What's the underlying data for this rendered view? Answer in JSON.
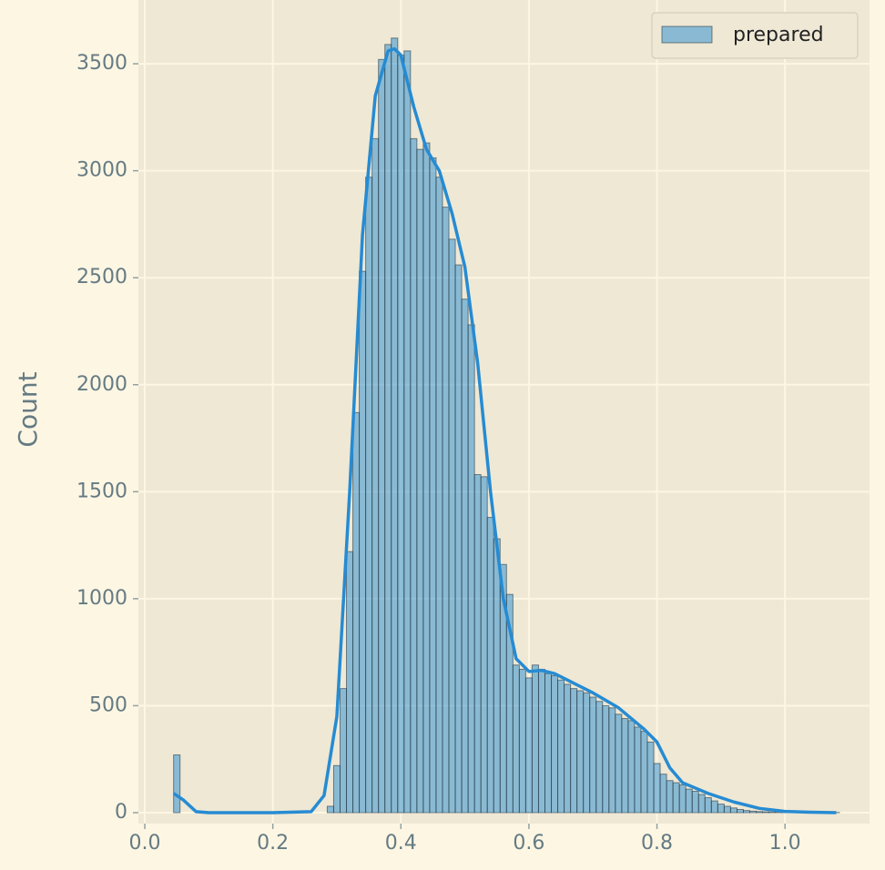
{
  "chart_data": {
    "type": "histogram",
    "ylabel": "Count",
    "name": "prepared",
    "color": "#268bd2",
    "edgecolor": "#2a3a44",
    "grid": true,
    "legend_loc": "upper right",
    "xlim": [
      -0.01,
      1.132
    ],
    "ylim": [
      -51,
      3798
    ],
    "xticks": [
      {
        "value": 0,
        "label": "0.0"
      },
      0.2,
      0.4,
      0.6,
      0.8,
      {
        "value": 1,
        "label": "1.0"
      }
    ],
    "yticks": [
      0,
      500,
      1000,
      1500,
      2000,
      2500,
      3000,
      3500
    ],
    "bins": [
      0.045,
      0.055,
      0.065,
      0.075,
      0.085,
      0.095,
      0.105,
      0.115,
      0.125,
      0.135,
      0.145,
      0.155,
      0.165,
      0.175,
      0.185,
      0.195,
      0.205,
      0.215,
      0.225,
      0.235,
      0.245,
      0.255,
      0.265,
      0.275,
      0.285,
      0.295,
      0.305,
      0.315,
      0.325,
      0.335,
      0.345,
      0.355,
      0.365,
      0.375,
      0.385,
      0.395,
      0.405,
      0.415,
      0.425,
      0.435,
      0.445,
      0.455,
      0.465,
      0.475,
      0.485,
      0.495,
      0.505,
      0.515,
      0.525,
      0.535,
      0.545,
      0.555,
      0.565,
      0.575,
      0.585,
      0.595,
      0.605,
      0.615,
      0.625,
      0.635,
      0.645,
      0.655,
      0.665,
      0.675,
      0.685,
      0.695,
      0.705,
      0.715,
      0.725,
      0.735,
      0.745,
      0.755,
      0.765,
      0.775,
      0.785,
      0.795,
      0.805,
      0.815,
      0.825,
      0.835,
      0.845,
      0.855,
      0.865,
      0.875,
      0.885,
      0.895,
      0.905,
      0.915,
      0.925,
      0.935,
      0.945,
      0.955,
      0.965,
      0.975,
      0.985,
      0.995,
      1.005,
      1.015,
      1.025,
      1.035,
      1.045,
      1.055,
      1.065,
      1.075,
      1.085
    ],
    "counts": [
      270,
      0,
      0,
      0,
      0,
      0,
      0,
      0,
      0,
      0,
      0,
      0,
      0,
      0,
      0,
      0,
      0,
      0,
      0,
      0,
      0,
      0,
      0,
      0,
      30,
      220,
      580,
      1220,
      1870,
      2530,
      2970,
      3150,
      3520,
      3590,
      3620,
      3540,
      3560,
      3150,
      3100,
      3130,
      3060,
      2970,
      2830,
      2680,
      2560,
      2400,
      2280,
      1580,
      1570,
      1380,
      1280,
      1160,
      1020,
      690,
      670,
      630,
      690,
      670,
      650,
      640,
      620,
      600,
      580,
      570,
      560,
      540,
      520,
      500,
      490,
      460,
      440,
      430,
      400,
      380,
      330,
      230,
      180,
      150,
      140,
      130,
      110,
      100,
      85,
      70,
      55,
      40,
      30,
      22,
      15,
      10,
      7,
      5,
      4,
      3,
      2,
      2,
      1,
      1,
      1,
      0,
      0,
      0,
      0,
      1
    ],
    "kde": {
      "color": "#268bd2",
      "x": [
        0.045,
        0.06,
        0.08,
        0.1,
        0.2,
        0.26,
        0.28,
        0.3,
        0.32,
        0.34,
        0.36,
        0.38,
        0.39,
        0.4,
        0.42,
        0.44,
        0.46,
        0.48,
        0.5,
        0.52,
        0.54,
        0.56,
        0.58,
        0.6,
        0.62,
        0.64,
        0.66,
        0.7,
        0.74,
        0.78,
        0.8,
        0.82,
        0.84,
        0.88,
        0.92,
        0.96,
        1.0,
        1.04,
        1.08
      ],
      "values": [
        90,
        60,
        5,
        0,
        0,
        5,
        80,
        450,
        1500,
        2700,
        3350,
        3560,
        3570,
        3540,
        3300,
        3100,
        3000,
        2800,
        2550,
        2100,
        1500,
        1000,
        720,
        660,
        665,
        650,
        620,
        560,
        490,
        390,
        330,
        210,
        140,
        90,
        50,
        20,
        6,
        2,
        0
      ]
    }
  }
}
